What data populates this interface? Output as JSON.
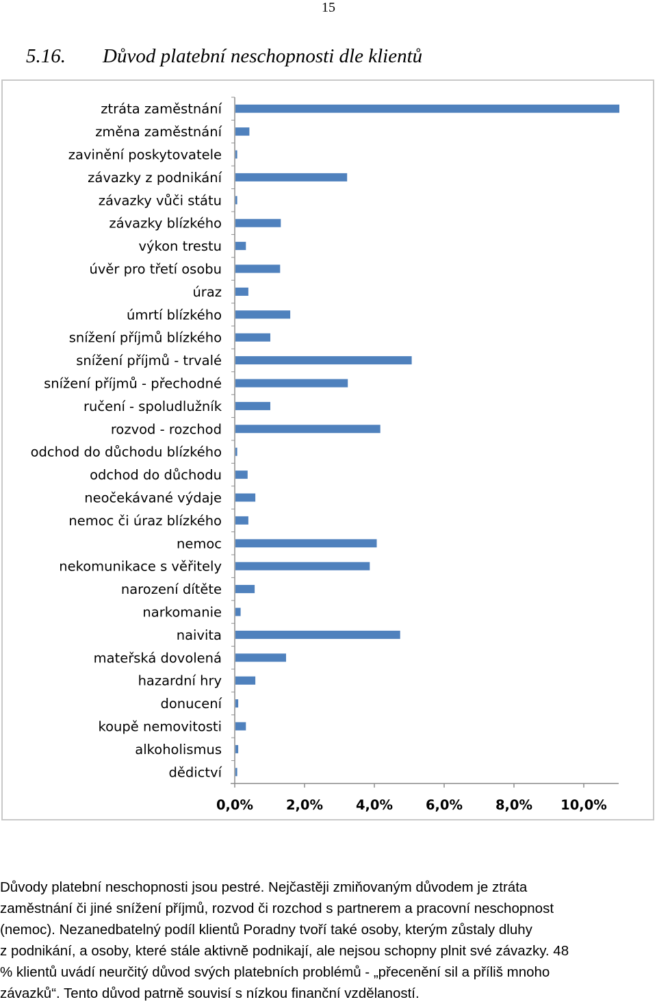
{
  "page": {
    "number": "15"
  },
  "heading": {
    "number": "5.16.",
    "title": "Důvod platební neschopnosti dle klientů"
  },
  "colors": {
    "bar": "#4f81bd",
    "axis": "#8c8c8c",
    "border": "#c8c8c8"
  },
  "chart_data": {
    "type": "bar",
    "orientation": "horizontal",
    "title": "",
    "xlabel": "",
    "ylabel": "",
    "xlim": [
      0,
      11
    ],
    "xticks": [
      0,
      2,
      4,
      6,
      8,
      10
    ],
    "xtick_labels": [
      "0,0%",
      "2,0%",
      "4,0%",
      "6,0%",
      "8,0%",
      "10,0%"
    ],
    "grid": false,
    "legend": "none",
    "categories": [
      "ztráta zaměstnání",
      "změna zaměstnání",
      "zavinění poskytovatele",
      "závazky z podnikání",
      "závazky vůči státu",
      "závazky blízkého",
      "výkon trestu",
      "úvěr pro třetí osobu",
      "úraz",
      "úmrtí blízkého",
      "snížení příjmů blízkého",
      "snížení příjmů - trvalé",
      "snížení příjmů - přechodné",
      "ručení - spoludlužník",
      "rozvod - rozchod",
      "odchod do důchodu blízkého",
      "odchod do důchodu",
      "neočekávané výdaje",
      "nemoc či úraz blízkého",
      "nemoc",
      "nekomunikace s věřitely",
      "narození dítěte",
      "narkomanie",
      "naivita",
      "mateřská dovolená",
      "hazardní hry",
      "donucení",
      "koupě nemovitosti",
      "alkoholismus",
      "dědictví"
    ],
    "values": [
      11.0,
      0.4,
      0.05,
      3.2,
      0.05,
      1.3,
      0.3,
      1.28,
      0.37,
      1.57,
      1.0,
      5.05,
      3.22,
      1.0,
      4.15,
      0.05,
      0.35,
      0.57,
      0.37,
      4.05,
      3.85,
      0.55,
      0.15,
      4.72,
      1.45,
      0.57,
      0.08,
      0.3,
      0.08,
      0.05
    ]
  },
  "paragraph": {
    "lines": [
      "Důvody platební neschopnosti jsou pestré. Nejčastěji zmiňovaným důvodem je ztráta",
      "zaměstnání či jiné snížení příjmů, rozvod či rozchod s partnerem a pracovní neschopnost",
      "(nemoc). Nezanedbatelný podíl klientů Poradny tvoří také osoby, kterým zůstaly dluhy",
      "z podnikání, a osoby, které stále aktivně podnikají, ale nejsou schopny plnit své závazky. 48",
      "% klientů uvádí neurčitý důvod svých platebních problémů - „přecenění sil a příliš mnoho",
      "závazků“. Tento důvod patrně souvisí s nízkou finanční vzdělaností."
    ]
  }
}
